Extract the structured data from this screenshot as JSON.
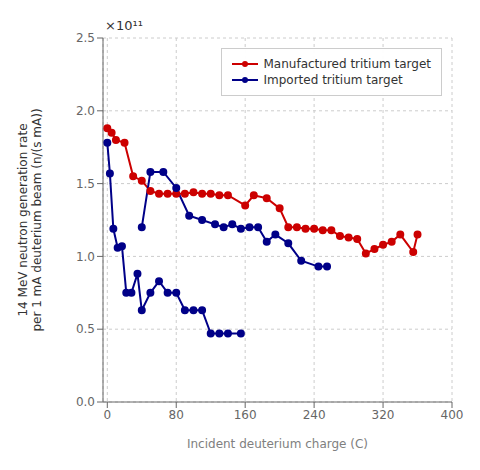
{
  "chart_data": {
    "type": "line",
    "xlabel": "Incident deuterium charge (C)",
    "ylabel": "14 MeV neutron generation rate\nper 1 mA deuterium beam (n/(s mA))",
    "annotations": [
      "×10¹¹"
    ],
    "xlim": [
      -5,
      400
    ],
    "ylim": [
      0.0,
      2.5
    ],
    "xticks": [
      0,
      80,
      160,
      240,
      320,
      400
    ],
    "yticks": [
      {
        "value": 0.0,
        "label": "0.0"
      },
      0.5,
      {
        "value": 1.0,
        "label": "1.0"
      },
      1.5,
      {
        "value": 2.0,
        "label": "2.0"
      },
      2.5
    ],
    "grid": true,
    "legend": "upper right",
    "series": [
      {
        "name": "Manufactured tritium target",
        "color": "#cc0000",
        "marker": "circle",
        "line_style": "solid",
        "x": [
          0,
          5,
          10,
          20,
          30,
          40,
          50,
          60,
          70,
          80,
          90,
          100,
          110,
          120,
          130,
          140,
          160,
          170,
          185,
          200,
          210,
          220,
          230,
          240,
          250,
          260,
          270,
          280,
          290,
          300,
          310,
          320,
          330,
          340,
          355,
          360
        ],
        "values": [
          1.88,
          1.85,
          1.8,
          1.78,
          1.55,
          1.52,
          1.45,
          1.43,
          1.43,
          1.43,
          1.43,
          1.44,
          1.43,
          1.43,
          1.42,
          1.42,
          1.35,
          1.42,
          1.4,
          1.33,
          1.2,
          1.2,
          1.19,
          1.19,
          1.18,
          1.18,
          1.14,
          1.13,
          1.12,
          1.02,
          1.05,
          1.08,
          1.1,
          1.15,
          1.03,
          1.15
        ]
      },
      {
        "name": "Imported tritium target",
        "color": "#000088",
        "marker": "circle",
        "line_style": "solid",
        "x": [
          0,
          3,
          7,
          12,
          17,
          22,
          28,
          35,
          40,
          50,
          60,
          70,
          80,
          90,
          100,
          110,
          120,
          130,
          140,
          155
        ],
        "values": [
          1.78,
          1.57,
          1.19,
          1.06,
          1.07,
          0.75,
          0.75,
          0.88,
          0.63,
          0.75,
          0.83,
          0.75,
          0.75,
          0.63,
          0.63,
          0.63,
          0.47,
          0.47,
          0.47,
          0.47
        ]
      },
      {
        "color": "#000088",
        "marker": "circle",
        "line_style": "solid",
        "x": [
          40,
          50,
          65,
          80,
          95,
          110,
          125,
          135,
          145,
          155,
          165,
          175,
          185,
          195,
          210,
          225,
          245,
          255
        ],
        "values": [
          1.2,
          1.58,
          1.58,
          1.47,
          1.28,
          1.25,
          1.22,
          1.2,
          1.22,
          1.19,
          1.2,
          1.2,
          1.1,
          1.15,
          1.09,
          0.97,
          0.93,
          0.93
        ]
      }
    ]
  }
}
